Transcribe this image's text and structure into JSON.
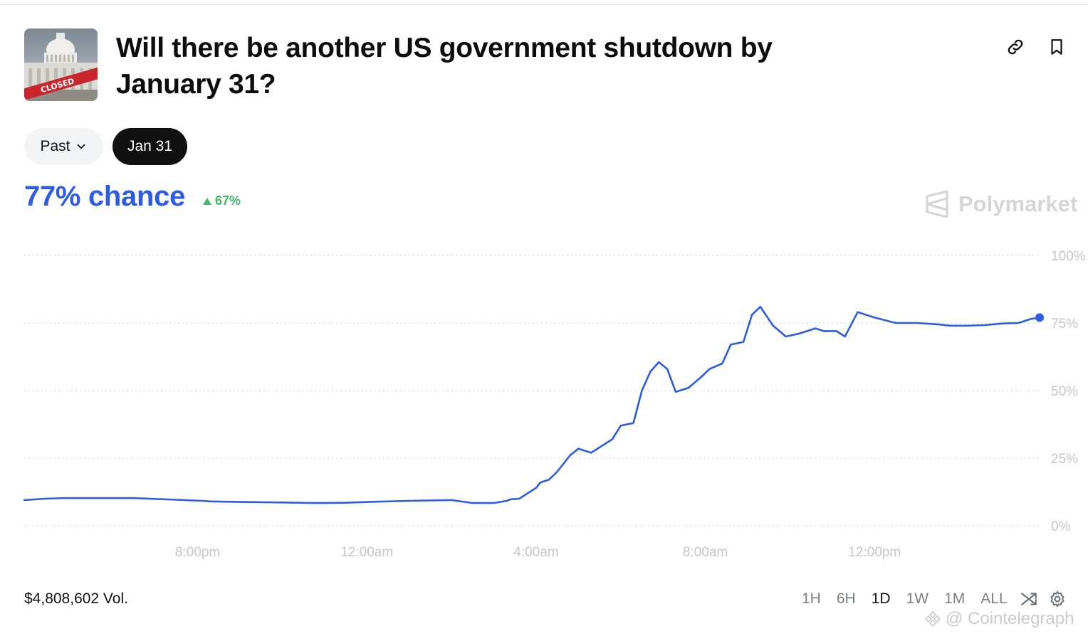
{
  "market": {
    "title": "Will there be another US government shutdown by January 31?",
    "thumbnail_label": "CLOSED"
  },
  "icons": {
    "link": "link-icon",
    "bookmark": "bookmark-icon",
    "chevron": "chevron-down-icon",
    "triangle": "triangle-up-icon",
    "shuffle": "shuffle-icon",
    "gear": "gear-icon",
    "logo": "polymarket-logo-icon"
  },
  "filters": {
    "past_label": "Past",
    "date_label": "Jan 31"
  },
  "odds": {
    "chance_text": "77% chance",
    "delta_text": "67%"
  },
  "brand": {
    "name": "Polymarket"
  },
  "footer": {
    "volume_text": "$4,808,602 Vol."
  },
  "ranges": [
    {
      "label": "1H",
      "active": false
    },
    {
      "label": "6H",
      "active": false
    },
    {
      "label": "1D",
      "active": true
    },
    {
      "label": "1W",
      "active": false
    },
    {
      "label": "1M",
      "active": false
    },
    {
      "label": "ALL",
      "active": false
    }
  ],
  "watermark": {
    "text": "@ Cointelegraph"
  },
  "colors": {
    "line": "#2d5be3",
    "grid": "#d9dbde",
    "axis_text": "#c4c6ca",
    "up": "#3fb86a"
  },
  "chart_data": {
    "type": "line",
    "title": "",
    "xlabel": "",
    "ylabel": "",
    "x_tick_labels": [
      "8:00pm",
      "12:00am",
      "4:00am",
      "8:00am",
      "12:00pm"
    ],
    "x_tick_hours": [
      20,
      24,
      28,
      32,
      36
    ],
    "y_tick_labels": [
      "100%",
      "75%",
      "50%",
      "25%",
      "0%"
    ],
    "y_tick_values": [
      100,
      75,
      50,
      25,
      0
    ],
    "ylim": [
      0,
      100
    ],
    "xlim": [
      15.9,
      39.9
    ],
    "grid": true,
    "series": [
      {
        "x": [
          15.9,
          16.4,
          16.8,
          17.5,
          18.5,
          19.5,
          20.1,
          20.3,
          21,
          22,
          22.7,
          23,
          23.5,
          24,
          25,
          26,
          26.5,
          27,
          27.3,
          27.4,
          27.6,
          28,
          28.1,
          28.3,
          28.5,
          28.8,
          29,
          29.3,
          29.5,
          29.8,
          30,
          30.3,
          30.5,
          30.7,
          30.9,
          31.1,
          31.3,
          31.6,
          31.9,
          32.1,
          32.4,
          32.6,
          32.9,
          33.1,
          33.3,
          33.6,
          33.9,
          34.2,
          34.6,
          34.8,
          35.1,
          35.3,
          35.6,
          36,
          36.5,
          37,
          37.5,
          37.8,
          38.2,
          38.6,
          39,
          39.4,
          39.7,
          39.9
        ],
        "values": [
          9.5,
          10,
          10.2,
          10.2,
          10.2,
          9.6,
          9.2,
          9,
          8.8,
          8.6,
          8.4,
          8.4,
          8.5,
          8.8,
          9.2,
          9.5,
          8.4,
          8.4,
          9.2,
          9.8,
          10,
          14,
          16,
          17,
          20,
          26,
          28.5,
          27,
          29,
          32,
          37,
          38,
          50,
          57,
          60.5,
          58,
          49.5,
          51,
          55,
          58,
          60,
          67,
          68,
          78,
          81,
          74,
          70,
          71,
          73,
          72,
          72,
          70,
          79,
          77,
          75,
          75,
          74.5,
          74,
          74,
          74.2,
          74.8,
          75,
          76.5,
          77
        ]
      }
    ]
  }
}
